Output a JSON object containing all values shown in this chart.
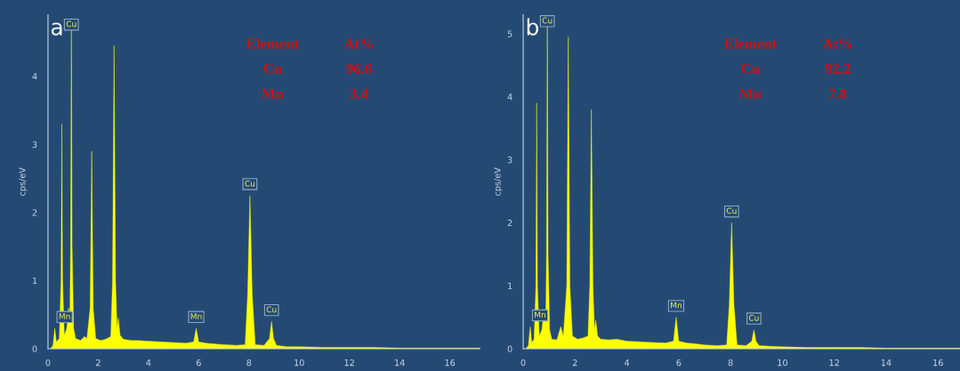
{
  "chart_data": [
    {
      "type": "area",
      "title": "a",
      "ylabel": "cps/eV",
      "x": [
        0.1,
        0.2,
        0.27,
        0.33,
        0.45,
        0.52,
        0.55,
        0.58,
        0.65,
        0.75,
        0.82,
        0.87,
        0.9,
        0.93,
        0.96,
        1.02,
        1.1,
        1.3,
        1.45,
        1.55,
        1.68,
        1.74,
        1.8,
        1.9,
        2.1,
        2.3,
        2.5,
        2.57,
        2.63,
        2.69,
        2.75,
        2.8,
        2.87,
        3.0,
        3.3,
        3.6,
        4.0,
        4.5,
        5.0,
        5.5,
        5.8,
        5.9,
        6.0,
        6.3,
        6.6,
        7.0,
        7.5,
        7.85,
        7.95,
        8.04,
        8.13,
        8.25,
        8.6,
        8.82,
        8.9,
        8.98,
        9.1,
        9.5,
        10,
        11,
        12,
        13,
        14,
        15,
        16,
        17.2
      ],
      "series": [
        {
          "color": "#ffff00",
          "values": [
            0,
            0.05,
            0.3,
            0.1,
            0.15,
            1.0,
            3.3,
            1.0,
            0.2,
            0.3,
            0.6,
            0.4,
            1.5,
            4.85,
            1.5,
            0.3,
            0.15,
            0.12,
            0.18,
            0.15,
            0.6,
            2.9,
            0.6,
            0.15,
            0.12,
            0.14,
            0.18,
            1.0,
            4.45,
            1.0,
            0.3,
            0.45,
            0.2,
            0.14,
            0.12,
            0.12,
            0.11,
            0.1,
            0.09,
            0.08,
            0.1,
            0.3,
            0.1,
            0.08,
            0.07,
            0.06,
            0.05,
            0.06,
            0.8,
            2.25,
            0.8,
            0.06,
            0.05,
            0.15,
            0.4,
            0.15,
            0.05,
            0.03,
            0.03,
            0.02,
            0.02,
            0.02,
            0.01,
            0.01,
            0.01,
            0.01
          ]
        }
      ],
      "xlim": [
        0,
        17.2
      ],
      "ylim": [
        0,
        4.9
      ],
      "xticks": [
        0,
        2,
        4,
        6,
        8,
        10,
        12,
        14,
        16
      ],
      "yticks": [
        0,
        1,
        2,
        3,
        4
      ],
      "annotations": [
        {
          "text": "Cu",
          "x": 0.93,
          "y": 4.85
        },
        {
          "text": "Mn",
          "x": 0.66,
          "y": 0.3
        },
        {
          "text": "Mn",
          "x": 5.9,
          "y": 0.3
        },
        {
          "text": "Cu",
          "x": 8.04,
          "y": 2.25
        },
        {
          "text": "Cu",
          "x": 8.9,
          "y": 0.4
        },
        "Element",
        "At%",
        "Cu",
        "96.6",
        "Mn",
        "3.4"
      ]
    },
    {
      "type": "area",
      "title": "b",
      "ylabel": "cps/eV",
      "x": [
        0.1,
        0.2,
        0.27,
        0.33,
        0.42,
        0.49,
        0.52,
        0.55,
        0.62,
        0.72,
        0.8,
        0.87,
        0.9,
        0.93,
        0.96,
        1.02,
        1.1,
        1.3,
        1.45,
        1.55,
        1.68,
        1.74,
        1.8,
        1.9,
        2.1,
        2.3,
        2.5,
        2.57,
        2.63,
        2.69,
        2.75,
        2.8,
        2.87,
        3.0,
        3.3,
        3.6,
        4.0,
        4.5,
        5.0,
        5.5,
        5.8,
        5.9,
        6.0,
        6.3,
        6.6,
        7.0,
        7.5,
        7.85,
        7.95,
        8.04,
        8.13,
        8.25,
        8.6,
        8.82,
        8.9,
        8.98,
        9.1,
        9.5,
        10,
        11,
        12,
        13,
        14,
        15,
        16,
        16.85
      ],
      "series": [
        {
          "color": "#ffff00",
          "values": [
            0,
            0.05,
            0.35,
            0.1,
            0.15,
            1.0,
            3.9,
            1.0,
            0.2,
            0.3,
            0.6,
            0.4,
            1.5,
            5.3,
            1.5,
            0.3,
            0.15,
            0.14,
            0.35,
            0.2,
            1.0,
            4.95,
            1.0,
            0.2,
            0.15,
            0.17,
            0.2,
            1.0,
            3.8,
            1.0,
            0.3,
            0.45,
            0.2,
            0.15,
            0.14,
            0.15,
            0.12,
            0.11,
            0.1,
            0.09,
            0.12,
            0.5,
            0.12,
            0.09,
            0.08,
            0.06,
            0.05,
            0.06,
            0.7,
            2.0,
            0.7,
            0.06,
            0.05,
            0.12,
            0.3,
            0.12,
            0.05,
            0.04,
            0.03,
            0.02,
            0.02,
            0.02,
            0.01,
            0.01,
            0.01,
            0.01
          ]
        }
      ],
      "xlim": [
        0,
        16.85
      ],
      "ylim": [
        0,
        5.3
      ],
      "xticks": [
        0,
        2,
        4,
        6,
        8,
        10,
        12,
        14,
        16
      ],
      "yticks": [
        0,
        1,
        2,
        3,
        4,
        5
      ],
      "annotations": [
        {
          "text": "Cu",
          "x": 0.93,
          "y": 5.3
        },
        {
          "text": "Mn",
          "x": 0.65,
          "y": 0.35
        },
        {
          "text": "Mn",
          "x": 5.9,
          "y": 0.5
        },
        {
          "text": "Cu",
          "x": 8.04,
          "y": 2.0
        },
        {
          "text": "Cu",
          "x": 8.9,
          "y": 0.3
        },
        "Element",
        "At%",
        "Cu",
        "92.2",
        "Mn",
        "7.8"
      ]
    }
  ]
}
